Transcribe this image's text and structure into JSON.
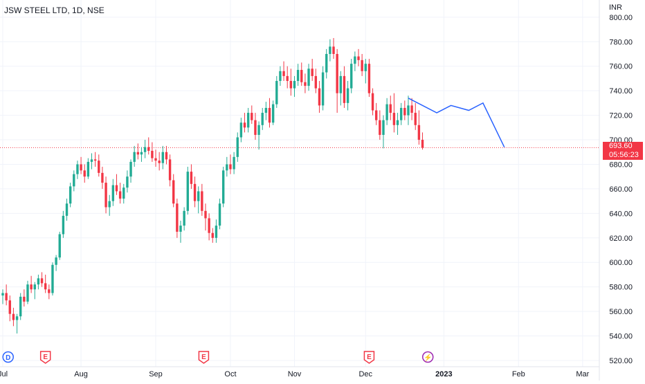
{
  "header": {
    "symbol": "JSW STEEL LTD, 1D, NSE",
    "currency": "INR"
  },
  "last_price": {
    "value": "693.60",
    "countdown": "05:56:23",
    "color": "#f23645"
  },
  "colors": {
    "up": "#22ab94",
    "down": "#f23645",
    "trend": "#2962ff",
    "grid": "#f0f3fa",
    "text": "#131722"
  },
  "chart_data": {
    "type": "candlestick",
    "title": "JSW STEEL LTD, 1D, NSE",
    "ylabel": "INR",
    "ylim": [
      515,
      810
    ],
    "y_ticks": [
      "800.00",
      "780.00",
      "760.00",
      "740.00",
      "720.00",
      "700.00",
      "680.00",
      "660.00",
      "640.00",
      "620.00",
      "600.00",
      "580.00",
      "560.00",
      "540.00",
      "520.00"
    ],
    "x_ticks": [
      {
        "label": "Jul",
        "pos": 0
      },
      {
        "label": "Aug",
        "pos": 22
      },
      {
        "label": "Sep",
        "pos": 43
      },
      {
        "label": "Oct",
        "pos": 64
      },
      {
        "label": "Nov",
        "pos": 82
      },
      {
        "label": "Dec",
        "pos": 102
      },
      {
        "label": "2023",
        "pos": 124,
        "bold": true
      },
      {
        "label": "Feb",
        "pos": 145
      },
      {
        "label": "Mar",
        "pos": 163
      }
    ],
    "candles": [
      [
        573,
        578,
        566,
        575
      ],
      [
        575,
        582,
        565,
        569
      ],
      [
        569,
        573,
        552,
        558
      ],
      [
        558,
        563,
        548,
        553
      ],
      [
        553,
        558,
        542,
        556
      ],
      [
        556,
        575,
        553,
        572
      ],
      [
        572,
        578,
        564,
        568
      ],
      [
        568,
        585,
        566,
        582
      ],
      [
        582,
        589,
        575,
        578
      ],
      [
        578,
        584,
        570,
        582
      ],
      [
        582,
        590,
        578,
        587
      ],
      [
        587,
        592,
        580,
        583
      ],
      [
        583,
        590,
        575,
        578
      ],
      [
        578,
        582,
        570,
        575
      ],
      [
        575,
        600,
        573,
        598
      ],
      [
        598,
        606,
        593,
        604
      ],
      [
        604,
        625,
        602,
        623
      ],
      [
        623,
        642,
        620,
        638
      ],
      [
        638,
        652,
        634,
        648
      ],
      [
        648,
        665,
        645,
        662
      ],
      [
        662,
        675,
        658,
        672
      ],
      [
        672,
        683,
        668,
        680
      ],
      [
        680,
        686,
        672,
        675
      ],
      [
        675,
        680,
        665,
        670
      ],
      [
        670,
        685,
        668,
        682
      ],
      [
        682,
        689,
        676,
        684
      ],
      [
        684,
        690,
        678,
        683
      ],
      [
        683,
        688,
        670,
        673
      ],
      [
        673,
        678,
        660,
        665
      ],
      [
        665,
        670,
        640,
        645
      ],
      [
        645,
        655,
        638,
        650
      ],
      [
        650,
        668,
        646,
        663
      ],
      [
        663,
        672,
        655,
        658
      ],
      [
        658,
        665,
        648,
        652
      ],
      [
        652,
        664,
        648,
        661
      ],
      [
        661,
        675,
        657,
        670
      ],
      [
        670,
        684,
        665,
        682
      ],
      [
        682,
        695,
        678,
        690
      ],
      [
        690,
        697,
        684,
        688
      ],
      [
        688,
        694,
        682,
        690
      ],
      [
        690,
        700,
        685,
        694
      ],
      [
        694,
        702,
        688,
        691
      ],
      [
        691,
        698,
        682,
        685
      ],
      [
        685,
        692,
        678,
        683
      ],
      [
        683,
        690,
        675,
        681
      ],
      [
        681,
        695,
        676,
        690
      ],
      [
        690,
        695,
        680,
        684
      ],
      [
        684,
        688,
        662,
        667
      ],
      [
        667,
        672,
        645,
        648
      ],
      [
        648,
        652,
        620,
        625
      ],
      [
        625,
        634,
        616,
        630
      ],
      [
        630,
        645,
        626,
        642
      ],
      [
        642,
        678,
        639,
        674
      ],
      [
        674,
        680,
        660,
        664
      ],
      [
        664,
        670,
        645,
        650
      ],
      [
        650,
        662,
        640,
        658
      ],
      [
        658,
        664,
        638,
        642
      ],
      [
        642,
        648,
        626,
        636
      ],
      [
        636,
        640,
        618,
        624
      ],
      [
        624,
        628,
        616,
        620
      ],
      [
        620,
        635,
        616,
        630
      ],
      [
        630,
        652,
        627,
        648
      ],
      [
        648,
        678,
        645,
        675
      ],
      [
        675,
        686,
        670,
        680
      ],
      [
        680,
        688,
        672,
        676
      ],
      [
        676,
        690,
        672,
        686
      ],
      [
        686,
        706,
        682,
        702
      ],
      [
        702,
        718,
        698,
        714
      ],
      [
        714,
        722,
        706,
        710
      ],
      [
        710,
        726,
        706,
        722
      ],
      [
        722,
        728,
        713,
        716
      ],
      [
        716,
        722,
        700,
        704
      ],
      [
        704,
        715,
        692,
        712
      ],
      [
        712,
        726,
        708,
        722
      ],
      [
        722,
        731,
        716,
        726
      ],
      [
        726,
        734,
        710,
        714
      ],
      [
        714,
        732,
        712,
        729
      ],
      [
        729,
        752,
        726,
        748
      ],
      [
        748,
        760,
        744,
        756
      ],
      [
        756,
        764,
        748,
        752
      ],
      [
        752,
        760,
        742,
        748
      ],
      [
        748,
        758,
        736,
        742
      ],
      [
        742,
        752,
        735,
        748
      ],
      [
        748,
        762,
        744,
        757
      ],
      [
        757,
        763,
        744,
        747
      ],
      [
        747,
        754,
        738,
        744
      ],
      [
        744,
        762,
        740,
        758
      ],
      [
        758,
        766,
        748,
        752
      ],
      [
        752,
        758,
        738,
        742
      ],
      [
        742,
        748,
        722,
        728
      ],
      [
        728,
        760,
        724,
        755
      ],
      [
        755,
        774,
        750,
        770
      ],
      [
        770,
        782,
        764,
        776
      ],
      [
        776,
        783,
        766,
        770
      ],
      [
        770,
        774,
        722,
        738
      ],
      [
        738,
        756,
        728,
        752
      ],
      [
        752,
        760,
        726,
        730
      ],
      [
        730,
        748,
        724,
        742
      ],
      [
        742,
        766,
        738,
        762
      ],
      [
        762,
        772,
        756,
        768
      ],
      [
        768,
        774,
        760,
        765
      ],
      [
        765,
        770,
        752,
        756
      ],
      [
        756,
        766,
        746,
        762
      ],
      [
        762,
        766,
        735,
        738
      ],
      [
        738,
        742,
        720,
        724
      ],
      [
        724,
        730,
        712,
        716
      ],
      [
        716,
        724,
        700,
        704
      ],
      [
        704,
        720,
        693,
        716
      ],
      [
        716,
        734,
        712,
        729
      ],
      [
        729,
        736,
        716,
        722
      ],
      [
        722,
        738,
        706,
        712
      ],
      [
        712,
        722,
        704,
        716
      ],
      [
        716,
        730,
        712,
        726
      ],
      [
        726,
        732,
        716,
        720
      ],
      [
        720,
        736,
        712,
        728
      ],
      [
        728,
        734,
        716,
        722
      ],
      [
        722,
        730,
        708,
        712
      ],
      [
        712,
        724,
        696,
        700
      ],
      [
        700,
        706,
        692,
        693.6
      ]
    ],
    "trend_line": [
      [
        114,
        734
      ],
      [
        122,
        722
      ],
      [
        126,
        728
      ],
      [
        131,
        724
      ],
      [
        135,
        730
      ],
      [
        141,
        694
      ]
    ],
    "events": [
      {
        "label": "D",
        "pos": 1.5,
        "kind": "dividend"
      },
      {
        "label": "E",
        "pos": 12,
        "kind": "earnings"
      },
      {
        "label": "E",
        "pos": 56.5,
        "kind": "earnings"
      },
      {
        "label": "E",
        "pos": 103,
        "kind": "earnings"
      },
      {
        "label": "⚡",
        "pos": 119.5,
        "kind": "split"
      }
    ]
  }
}
